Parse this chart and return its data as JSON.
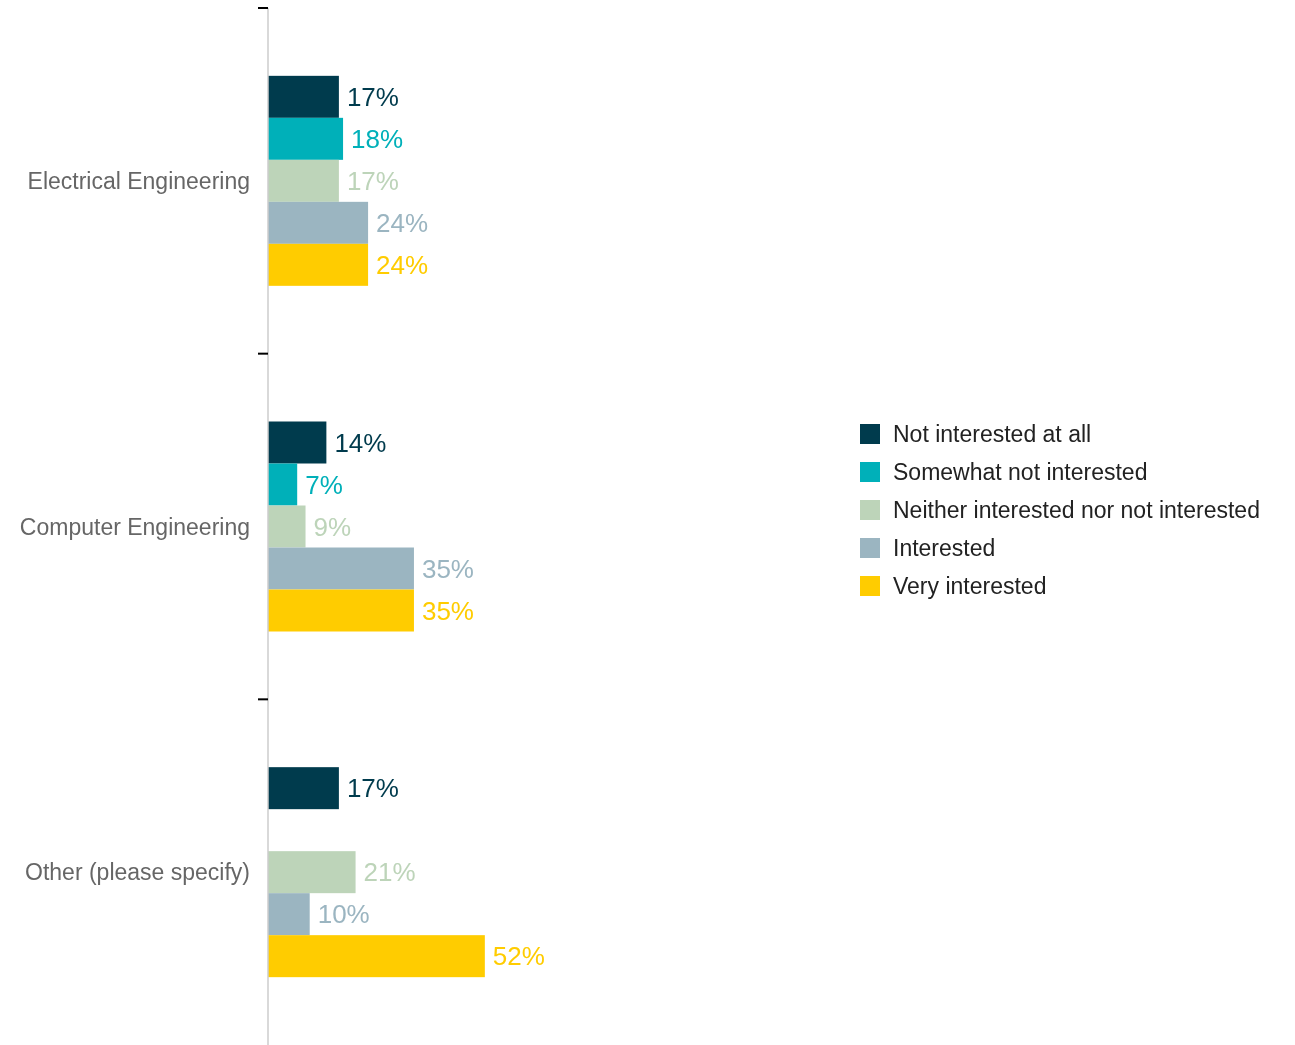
{
  "chart_data": {
    "type": "bar",
    "orientation": "horizontal",
    "categories": [
      "Electrical Engineering",
      "Computer Engineering",
      "Other (please specify)"
    ],
    "series": [
      {
        "name": "Not interested at all",
        "color": "#003b4d",
        "values": [
          17,
          14,
          17
        ],
        "value_labels": [
          "17%",
          "14%",
          "17%"
        ]
      },
      {
        "name": "Somewhat not interested",
        "color": "#00b0b9",
        "values": [
          18,
          7,
          null
        ],
        "value_labels": [
          "18%",
          "7%",
          null
        ]
      },
      {
        "name": "Neither interested nor not interested",
        "color": "#bdd4b9",
        "values": [
          17,
          9,
          21
        ],
        "value_labels": [
          "17%",
          "9%",
          "21%"
        ]
      },
      {
        "name": "Interested",
        "color": "#9bb5c1",
        "values": [
          24,
          35,
          10
        ],
        "value_labels": [
          "24%",
          "35%",
          "10%"
        ]
      },
      {
        "name": "Very interested",
        "color": "#ffcc00",
        "values": [
          24,
          35,
          52
        ],
        "value_labels": [
          "24%",
          "35%",
          "52%"
        ]
      }
    ],
    "legend": "right"
  }
}
